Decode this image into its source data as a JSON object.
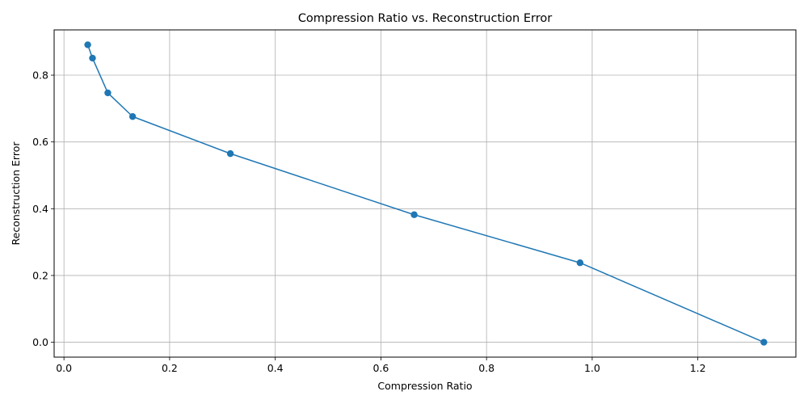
{
  "chart_data": {
    "type": "line",
    "title": "Compression Ratio vs. Reconstruction Error",
    "xlabel": "Compression Ratio",
    "ylabel": "Reconstruction Error",
    "xlim": [
      -0.0186,
      1.3856
    ],
    "ylim": [
      -0.0446,
      0.9356
    ],
    "grid": true,
    "x_ticks": [
      0.0,
      0.2,
      0.4,
      0.6,
      0.8,
      1.0,
      1.2
    ],
    "x_tick_labels": [
      "0.0",
      "0.2",
      "0.4",
      "0.6",
      "0.8",
      "1.0",
      "1.2"
    ],
    "y_ticks": [
      0.0,
      0.2,
      0.4,
      0.6,
      0.8
    ],
    "y_tick_labels": [
      "0.0",
      "0.2",
      "0.4",
      "0.6",
      "0.8"
    ],
    "series": [
      {
        "color": "#1f77b4",
        "marker": "circle",
        "x": [
          0.045,
          0.054,
          0.083,
          0.13,
          0.315,
          0.663,
          0.977,
          1.325
        ],
        "y": [
          0.891,
          0.851,
          0.747,
          0.676,
          0.565,
          0.382,
          0.238,
          0.0
        ]
      }
    ]
  }
}
